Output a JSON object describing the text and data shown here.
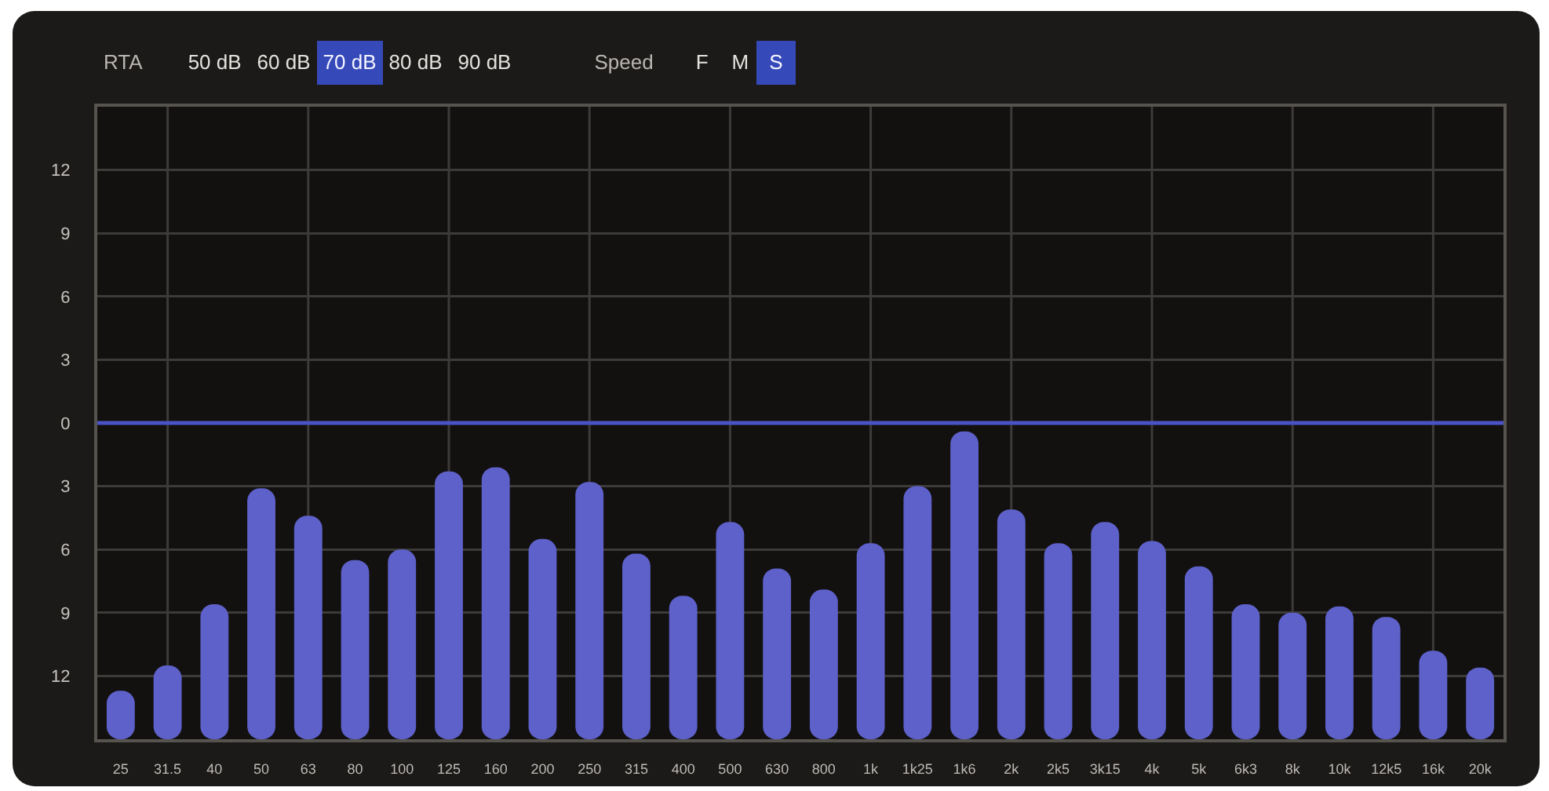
{
  "chart_data": {
    "type": "bar",
    "annotations": [
      "RTA",
      "50 dB",
      "60 dB",
      "70 dB",
      "80 dB",
      "90 dB",
      "Speed",
      "F",
      "M",
      "S"
    ],
    "categories": [
      "25",
      "31.5",
      "40",
      "50",
      "63",
      "80",
      "100",
      "125",
      "160",
      "200",
      "250",
      "315",
      "400",
      "500",
      "630",
      "800",
      "1k",
      "1k25",
      "1k6",
      "2k",
      "2k5",
      "3k15",
      "4k",
      "5k",
      "6k3",
      "8k",
      "10k",
      "12k5",
      "16k",
      "20k"
    ],
    "base": [
      -15,
      -15,
      -15,
      -15,
      -15,
      -15,
      -15,
      -15,
      -15,
      -15,
      -15,
      -15,
      -15,
      -15,
      -15,
      -15,
      -15,
      -15,
      -15,
      -15,
      -15,
      -15,
      -15,
      -15,
      -15,
      -15,
      -15,
      -15,
      -15,
      -15
    ],
    "values": [
      2.3,
      3.5,
      6.4,
      11.9,
      10.6,
      8.5,
      9.0,
      12.7,
      12.9,
      9.5,
      12.2,
      8.8,
      6.8,
      10.3,
      8.1,
      7.1,
      9.3,
      12.0,
      14.6,
      10.9,
      9.3,
      10.3,
      9.4,
      8.2,
      6.4,
      6.0,
      6.3,
      5.8,
      4.2,
      3.4
    ],
    "color": "#5d61c9",
    "ylim": [
      -15,
      15
    ],
    "yticks": [
      {
        "value": -12,
        "label": "12"
      },
      {
        "value": -9,
        "label": "9"
      },
      {
        "value": -6,
        "label": "6"
      },
      {
        "value": -3,
        "label": "3"
      },
      0,
      3,
      6,
      9,
      12
    ],
    "grid": true,
    "ref_lines": [
      {
        "axis": "y",
        "value": 0,
        "color": "#4a52c4"
      }
    ]
  }
}
